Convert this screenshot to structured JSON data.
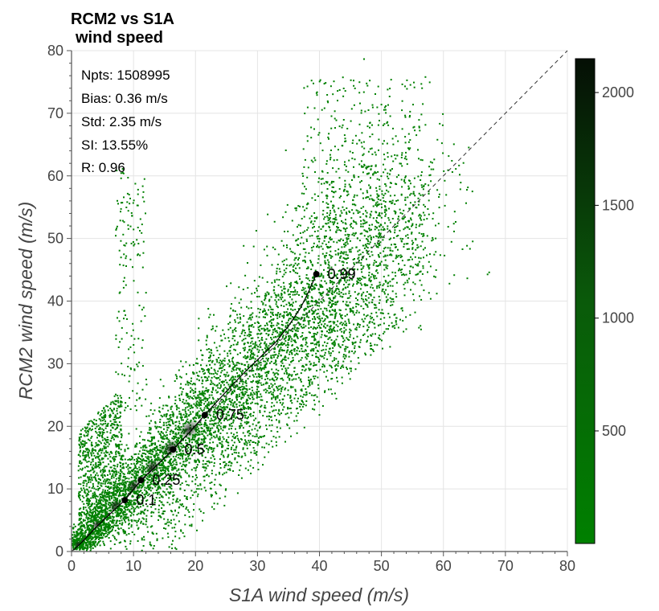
{
  "chart_data": {
    "type": "heatmap",
    "title_lines": [
      "RCM2 vs S1A",
      "wind speed"
    ],
    "xlabel": "S1A wind speed (m/s)",
    "ylabel": "RCM2 wind speed (m/s)",
    "xlim": [
      0,
      80
    ],
    "ylim": [
      0,
      80
    ],
    "xticks": [
      0,
      10,
      20,
      30,
      40,
      50,
      60,
      70,
      80
    ],
    "yticks": [
      0,
      10,
      20,
      30,
      40,
      50,
      60,
      70,
      80
    ],
    "grid": true,
    "identity_line": true,
    "stats": [
      "Npts: 1508995",
      "Bias: 0.36 m/s",
      "Std: 2.35 m/s",
      "SI: 13.55%",
      "R: 0.96"
    ],
    "quantiles": [
      {
        "label": "0.1",
        "x": 8.6,
        "y": 8.2
      },
      {
        "label": "0.25",
        "x": 11.2,
        "y": 11.4
      },
      {
        "label": "0.5",
        "x": 16.4,
        "y": 16.3
      },
      {
        "label": "0.75",
        "x": 21.5,
        "y": 21.8
      },
      {
        "label": "0.99",
        "x": 39.5,
        "y": 44.3
      }
    ],
    "quantile_curve": [
      [
        0.3,
        0.2
      ],
      [
        2,
        1.8
      ],
      [
        4,
        3.9
      ],
      [
        6,
        5.8
      ],
      [
        8.6,
        8.2
      ],
      [
        11.2,
        11.4
      ],
      [
        14,
        14.0
      ],
      [
        16.4,
        16.3
      ],
      [
        19,
        19.0
      ],
      [
        21.5,
        21.8
      ],
      [
        25,
        25.6
      ],
      [
        28,
        28.7
      ],
      [
        30,
        30.6
      ],
      [
        33,
        33.5
      ],
      [
        35,
        36.0
      ],
      [
        37,
        39.0
      ],
      [
        38.5,
        42.0
      ],
      [
        39.5,
        44.3
      ]
    ],
    "colorbar": {
      "min": 1,
      "max": 2150,
      "ticks": [
        500,
        1000,
        1500,
        2000
      ],
      "low_color": "#008000",
      "mid_color": "#0a5a0a",
      "high_color": "#050f05"
    }
  }
}
